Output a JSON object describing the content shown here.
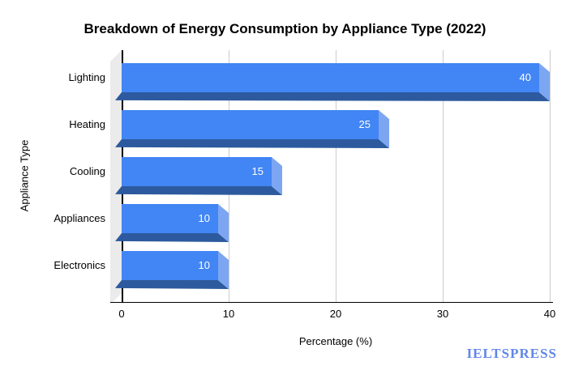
{
  "title": "Breakdown of Energy Consumption by Appliance Type (2022)",
  "watermark": {
    "text": "IELTSPRESS",
    "color": "#6286E8"
  },
  "x_axis": {
    "label": "Percentage (%)",
    "ticks": [
      0,
      10,
      20,
      30,
      40
    ],
    "min": 0,
    "max": 40
  },
  "y_axis": {
    "label": "Appliance Type"
  },
  "colors": {
    "bar": "#4285F4",
    "bar_bottom": "#2D5A9E",
    "bar_end": "#7DA6F2",
    "gridline": "#CCCCCC",
    "wall": "#EBEBEB",
    "axis": "#000000",
    "value_label": "#FFFFFF",
    "title_text": "#000000"
  },
  "chart_data": {
    "type": "bar",
    "orientation": "horizontal",
    "bar_style": "3d",
    "title": "Breakdown of Energy Consumption by Appliance Type (2022)",
    "categories": [
      "Lighting",
      "Heating",
      "Cooling",
      "Appliances",
      "Electronics"
    ],
    "values": [
      40,
      25,
      15,
      10,
      10
    ],
    "xlabel": "Percentage (%)",
    "ylabel": "Appliance Type",
    "xlim": [
      0,
      40
    ],
    "xticks": [
      0,
      10,
      20,
      30,
      40
    ],
    "grid": true,
    "legend": false,
    "data_labels": true
  }
}
